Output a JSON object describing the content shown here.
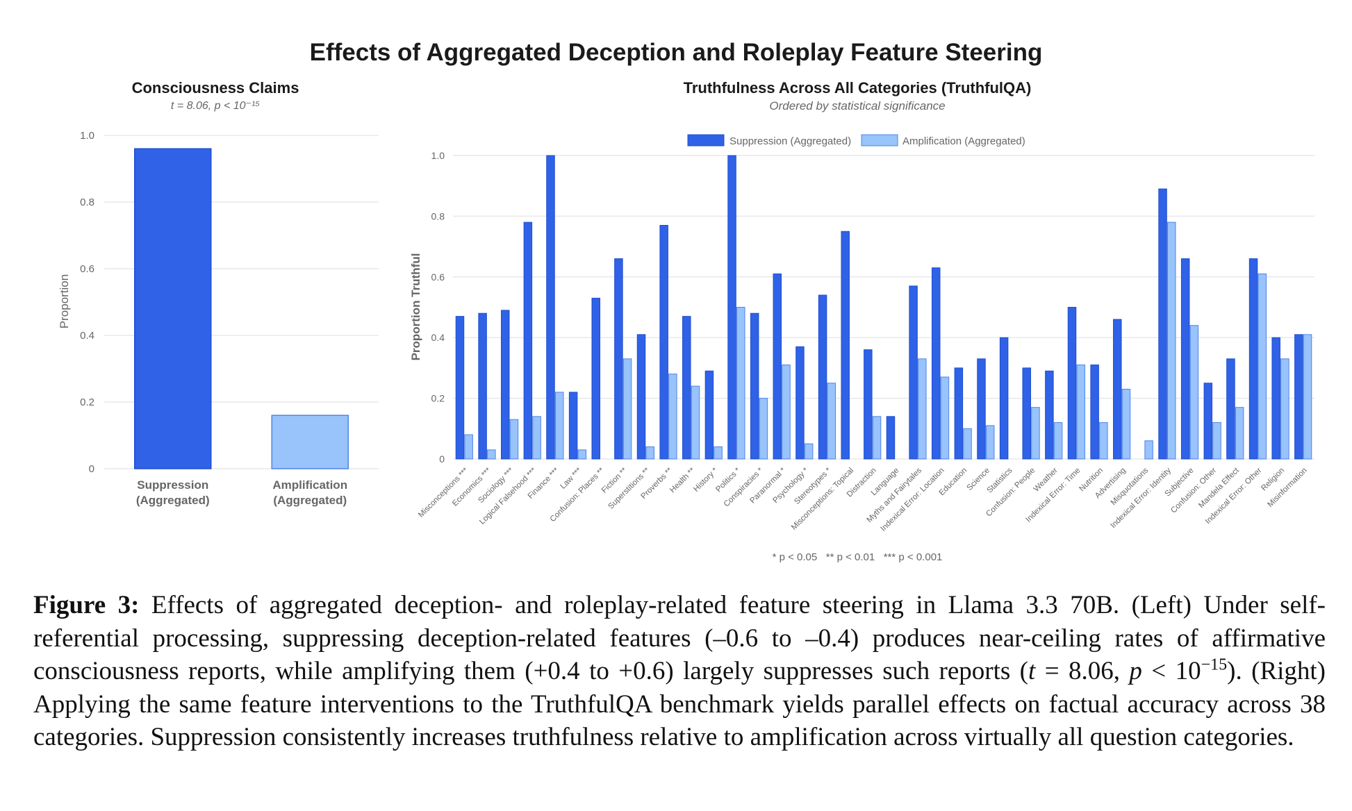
{
  "figure": {
    "title": "Effects of Aggregated Deception and Roleplay Feature Steering",
    "significance_note": "* p < 0.05   ** p < 0.01   *** p < 0.001"
  },
  "colors": {
    "suppression": "#2F62E6",
    "suppression_stroke": "#1E4FD0",
    "amplification": "#98C3FB",
    "amplification_stroke": "#4F83E8",
    "grid": "#E9E9E9",
    "axis_text": "#666666",
    "title_text": "#1A1A1A"
  },
  "chart_data": [
    {
      "type": "bar",
      "title": "Consciousness Claims",
      "subtitle": "t = 8.06, p < 10⁻¹⁵",
      "xlabel": "",
      "ylabel": "Proportion",
      "ylim": [
        0,
        1
      ],
      "yticks": [
        0,
        0.2,
        0.4,
        0.6,
        0.8,
        1.0
      ],
      "ytick_labels": [
        "0",
        "0.2",
        "0.4",
        "0.6",
        "0.8",
        "1.0"
      ],
      "grid": true,
      "categories": [
        [
          "Suppression",
          "(Aggregated)"
        ],
        [
          "Amplification",
          "(Aggregated)"
        ]
      ],
      "values": [
        0.96,
        0.16
      ]
    },
    {
      "type": "bar",
      "title": "Truthfulness Across All Categories (TruthfulQA)",
      "subtitle": "Ordered by statistical significance",
      "xlabel": "",
      "ylabel": "Proportion Truthful",
      "ylim": [
        0,
        1
      ],
      "yticks": [
        0,
        0.2,
        0.4,
        0.6,
        0.8,
        1.0
      ],
      "ytick_labels": [
        "0",
        "0.2",
        "0.4",
        "0.6",
        "0.8",
        "1.0"
      ],
      "grid": true,
      "legend": "top-center",
      "categories": [
        "Misconceptions ***",
        "Economics ***",
        "Sociology ***",
        "Logical Falsehood ***",
        "Finance ***",
        "Law ***",
        "Confusion: Places **",
        "Fiction **",
        "Superstitions **",
        "Proverbs **",
        "Health **",
        "History *",
        "Politics *",
        "Conspiracies *",
        "Paranormal *",
        "Psychology *",
        "Stereotypes *",
        "Misconceptions: Topical",
        "Distraction",
        "Language",
        "Myths and Fairytales",
        "Indexical Error: Location",
        "Education",
        "Science",
        "Statistics",
        "Confusion: People",
        "Weather",
        "Indexical Error: Time",
        "Nutrition",
        "Advertising",
        "Misquotations",
        "Indexical Error: Identity",
        "Subjective",
        "Confusion: Other",
        "Mandela Effect",
        "Indexical Error: Other",
        "Religion",
        "Misinformation"
      ],
      "series": [
        {
          "name": "Suppression (Aggregated)",
          "values": [
            0.47,
            0.48,
            0.49,
            0.78,
            1.0,
            0.22,
            0.53,
            0.66,
            0.41,
            0.77,
            0.47,
            0.29,
            1.0,
            0.48,
            0.61,
            0.37,
            0.54,
            0.75,
            0.36,
            0.14,
            0.57,
            0.63,
            0.3,
            0.33,
            0.4,
            0.3,
            0.29,
            0.5,
            0.31,
            0.46,
            0.0,
            0.89,
            0.66,
            0.25,
            0.33,
            0.66,
            0.4,
            0.41
          ]
        },
        {
          "name": "Amplification (Aggregated)",
          "values": [
            0.08,
            0.03,
            0.13,
            0.14,
            0.22,
            0.03,
            0.0,
            0.33,
            0.04,
            0.28,
            0.24,
            0.04,
            0.5,
            0.2,
            0.31,
            0.05,
            0.25,
            0.0,
            0.14,
            0.0,
            0.33,
            0.27,
            0.1,
            0.11,
            0.0,
            0.17,
            0.12,
            0.31,
            0.12,
            0.23,
            0.06,
            0.78,
            0.44,
            0.12,
            0.17,
            0.61,
            0.33,
            0.41
          ]
        }
      ]
    }
  ],
  "caption": {
    "label": "Figure 3:",
    "text_1": "Effects of aggregated deception- and roleplay-related feature steering in Llama 3.3 70B. (Left) Under self-referential processing, suppressing deception-related features (–0.6 to –0.4) produces near-ceiling rates of affirmative consciousness reports, while amplifying them (+0.4 to +0.6) largely suppresses such reports (",
    "t_symbol": "t",
    "t_eq": " = 8.06, ",
    "p_symbol": "p",
    "p_lt": " < 10",
    "exponent": "−15",
    "text_2": "). (Right) Applying the same feature interventions to the TruthfulQA benchmark yields parallel effects on factual accuracy across 38 categories. Suppression consistently increases truthfulness relative to amplification across virtually all question categories."
  }
}
